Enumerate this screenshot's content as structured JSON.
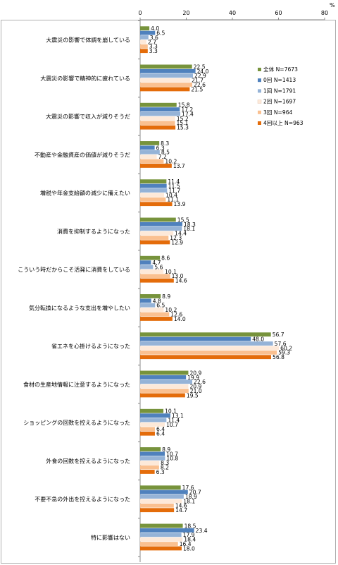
{
  "chart_data": {
    "type": "bar",
    "orientation": "horizontal",
    "unit": "%",
    "xlim": [
      0,
      80
    ],
    "ticks": [
      "0",
      "20",
      "40",
      "60",
      "80"
    ],
    "grid": false,
    "legend_position": "right",
    "categories": [
      "大震災の影響で体調を崩している",
      "大震災の影響で精神的に疲れている",
      "大震災の影響で収入が減りそうだ",
      "不動産や金融資産の価値が減りそうだ",
      "増税や年金支給額の減少に備えたい",
      "消費を抑制するようになった",
      "こういう時だからこそ活発に消費をしている",
      "気分転換になるような支出を増やしたい",
      "省エネを心掛けるようになった",
      "食材の生産地情報に注意するようになった",
      "ショッピングの回数を控えるようになった",
      "外食の回数を控えるようになった",
      "不要不急の外出を控えるようになった",
      "特に影響はない"
    ],
    "series": [
      {
        "name": "全体 N=7673",
        "color": "#77933c",
        "values": [
          4.0,
          22.5,
          15.8,
          8.3,
          11.4,
          15.5,
          8.6,
          8.9,
          56.7,
          20.9,
          10.1,
          8.9,
          17.6,
          18.5
        ]
      },
      {
        "name": "0回 N=1413",
        "color": "#4f81bd",
        "values": [
          6.5,
          24.0,
          17.2,
          6.3,
          11.5,
          18.3,
          4.7,
          4.8,
          48.0,
          19.9,
          13.1,
          10.7,
          20.7,
          23.4
        ]
      },
      {
        "name": "1回 N=1791",
        "color": "#95b3d7",
        "values": [
          3.6,
          22.9,
          17.4,
          8.5,
          11.7,
          18.1,
          5.6,
          6.5,
          57.6,
          22.6,
          11.4,
          10.8,
          18.9,
          17.9
        ]
      },
      {
        "name": "2回 N=1697",
        "color": "#fde9d9",
        "values": [
          2.7,
          21.7,
          15.2,
          7.2,
          10.4,
          14.4,
          10.1,
          10.2,
          60.2,
          20.9,
          10.7,
          8.3,
          18.1,
          18.4
        ]
      },
      {
        "name": "3回 N=964",
        "color": "#fac090",
        "values": [
          3.3,
          22.6,
          15.1,
          10.2,
          11.1,
          12.3,
          13.0,
          12.6,
          59.3,
          21.0,
          6.4,
          8.2,
          14.6,
          16.4
        ]
      },
      {
        "name": "4回以上 N=963",
        "color": "#e46c0a",
        "values": [
          3.3,
          21.5,
          15.3,
          13.7,
          13.9,
          12.9,
          14.6,
          14.0,
          56.8,
          19.5,
          6.4,
          6.3,
          14.7,
          18.0
        ]
      }
    ]
  }
}
